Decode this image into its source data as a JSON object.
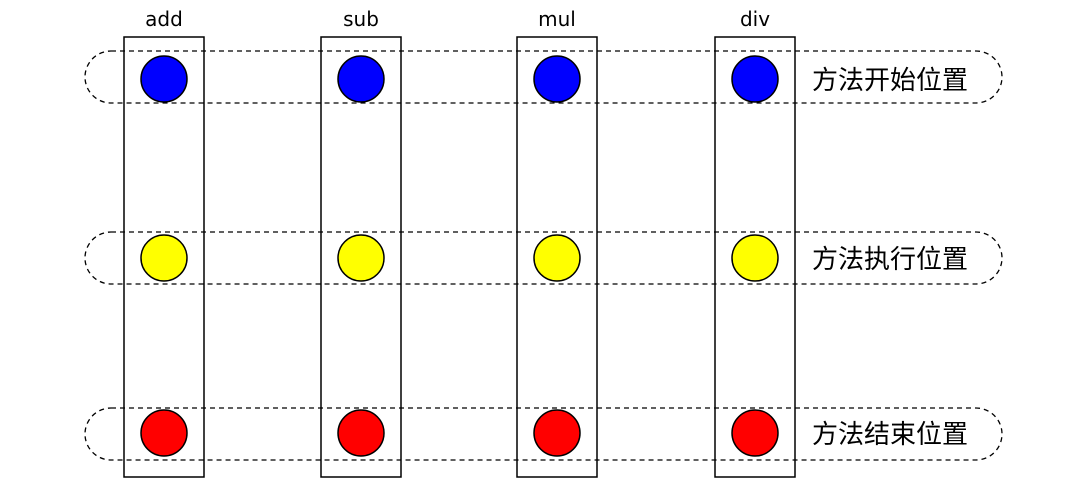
{
  "columns": [
    {
      "label": "add"
    },
    {
      "label": "sub"
    },
    {
      "label": "mul"
    },
    {
      "label": "div"
    }
  ],
  "rows": [
    {
      "label": "方法开始位置",
      "color": "#0000ff"
    },
    {
      "label": "方法执行位置",
      "color": "#ffff00"
    },
    {
      "label": "方法结束位置",
      "color": "#ff0000"
    }
  ]
}
